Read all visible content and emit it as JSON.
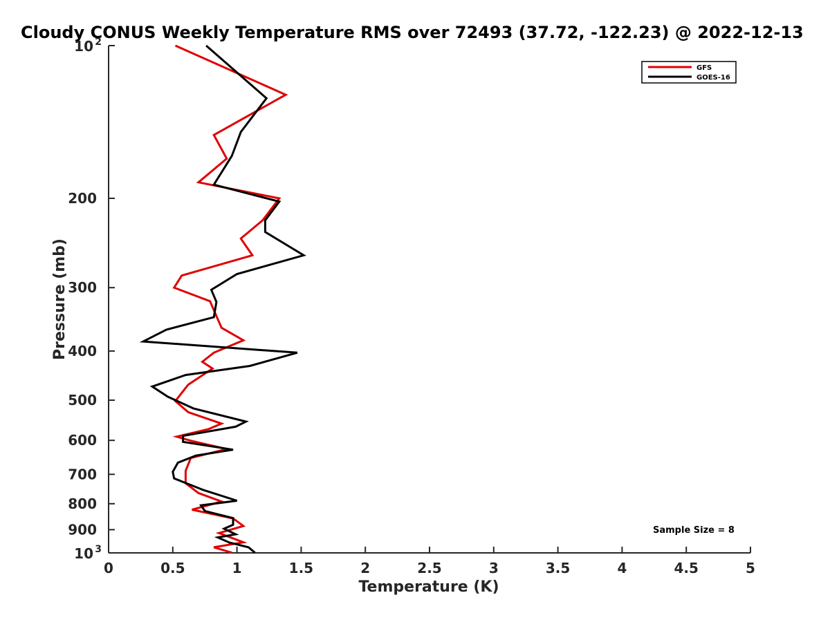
{
  "chart_data": {
    "type": "line",
    "title": "Cloudy CONUS Weekly Temperature RMS over 72493 (37.72, -122.23) @ 2022-12-13",
    "xlabel": "Temperature (K)",
    "ylabel": "Pressure (mb)",
    "xlim": [
      0,
      5
    ],
    "ylim": [
      100,
      1000
    ],
    "y_scale": "log",
    "y_reversed": true,
    "grid": false,
    "legend_position": "top-right",
    "x_ticks": [
      {
        "value": 0,
        "label": "0"
      },
      {
        "value": 0.5,
        "label": "0.5"
      },
      {
        "value": 1,
        "label": "1"
      },
      {
        "value": 1.5,
        "label": "1.5"
      },
      {
        "value": 2,
        "label": "2"
      },
      {
        "value": 2.5,
        "label": "2.5"
      },
      {
        "value": 3,
        "label": "3"
      },
      {
        "value": 3.5,
        "label": "3.5"
      },
      {
        "value": 4,
        "label": "4"
      },
      {
        "value": 4.5,
        "label": "4.5"
      },
      {
        "value": 5,
        "label": "5"
      }
    ],
    "y_ticks": [
      {
        "value": 100,
        "label": "10",
        "sup": "2"
      },
      {
        "value": 200,
        "label": "200",
        "sup": ""
      },
      {
        "value": 300,
        "label": "300",
        "sup": ""
      },
      {
        "value": 400,
        "label": "400",
        "sup": ""
      },
      {
        "value": 500,
        "label": "500",
        "sup": ""
      },
      {
        "value": 600,
        "label": "600",
        "sup": ""
      },
      {
        "value": 700,
        "label": "700",
        "sup": ""
      },
      {
        "value": 800,
        "label": "800",
        "sup": ""
      },
      {
        "value": 900,
        "label": "900",
        "sup": ""
      },
      {
        "value": 1000,
        "label": "10",
        "sup": "3"
      }
    ],
    "series": [
      {
        "name": "GFS",
        "color": "#e00000",
        "points": [
          [
            0.52,
            100
          ],
          [
            1.38,
            125
          ],
          [
            0.82,
            150
          ],
          [
            0.92,
            167
          ],
          [
            0.7,
            186
          ],
          [
            1.33,
            200
          ],
          [
            1.2,
            221
          ],
          [
            1.03,
            240
          ],
          [
            1.12,
            259
          ],
          [
            0.57,
            284
          ],
          [
            0.51,
            300
          ],
          [
            0.79,
            319
          ],
          [
            0.88,
            360
          ],
          [
            1.05,
            381
          ],
          [
            0.82,
            403
          ],
          [
            0.73,
            420
          ],
          [
            0.81,
            433
          ],
          [
            0.62,
            466
          ],
          [
            0.52,
            502
          ],
          [
            0.62,
            528
          ],
          [
            0.88,
            556
          ],
          [
            0.78,
            570
          ],
          [
            0.53,
            590
          ],
          [
            0.64,
            601
          ],
          [
            0.92,
            624
          ],
          [
            0.64,
            650
          ],
          [
            0.6,
            689
          ],
          [
            0.6,
            729
          ],
          [
            0.7,
            762
          ],
          [
            0.88,
            792
          ],
          [
            0.65,
            822
          ],
          [
            0.97,
            855
          ],
          [
            1.05,
            885
          ],
          [
            0.86,
            914
          ],
          [
            1.05,
            953
          ],
          [
            0.82,
            975
          ],
          [
            0.96,
            999
          ]
        ]
      },
      {
        "name": "GOES-16",
        "color": "#000000",
        "points": [
          [
            0.76,
            100
          ],
          [
            1.23,
            127
          ],
          [
            1.03,
            148
          ],
          [
            0.96,
            165
          ],
          [
            0.82,
            188
          ],
          [
            1.33,
            203
          ],
          [
            1.22,
            221
          ],
          [
            1.22,
            233
          ],
          [
            1.52,
            259
          ],
          [
            1.0,
            282
          ],
          [
            0.8,
            303
          ],
          [
            0.84,
            320
          ],
          [
            0.82,
            343
          ],
          [
            0.45,
            363
          ],
          [
            0.27,
            383
          ],
          [
            1.47,
            403
          ],
          [
            1.1,
            428
          ],
          [
            0.6,
            446
          ],
          [
            0.34,
            470
          ],
          [
            0.46,
            492
          ],
          [
            0.66,
            519
          ],
          [
            1.07,
            551
          ],
          [
            0.99,
            564
          ],
          [
            0.58,
            588
          ],
          [
            0.58,
            604
          ],
          [
            0.97,
            626
          ],
          [
            0.68,
            643
          ],
          [
            0.54,
            664
          ],
          [
            0.5,
            692
          ],
          [
            0.51,
            713
          ],
          [
            0.74,
            752
          ],
          [
            1.0,
            789
          ],
          [
            0.72,
            806
          ],
          [
            0.75,
            827
          ],
          [
            0.97,
            854
          ],
          [
            0.97,
            880
          ],
          [
            0.9,
            896
          ],
          [
            0.99,
            919
          ],
          [
            0.85,
            932
          ],
          [
            0.94,
            954
          ],
          [
            1.09,
            975
          ],
          [
            1.14,
            999
          ]
        ]
      }
    ],
    "annotation": "Sample Size = 8"
  }
}
